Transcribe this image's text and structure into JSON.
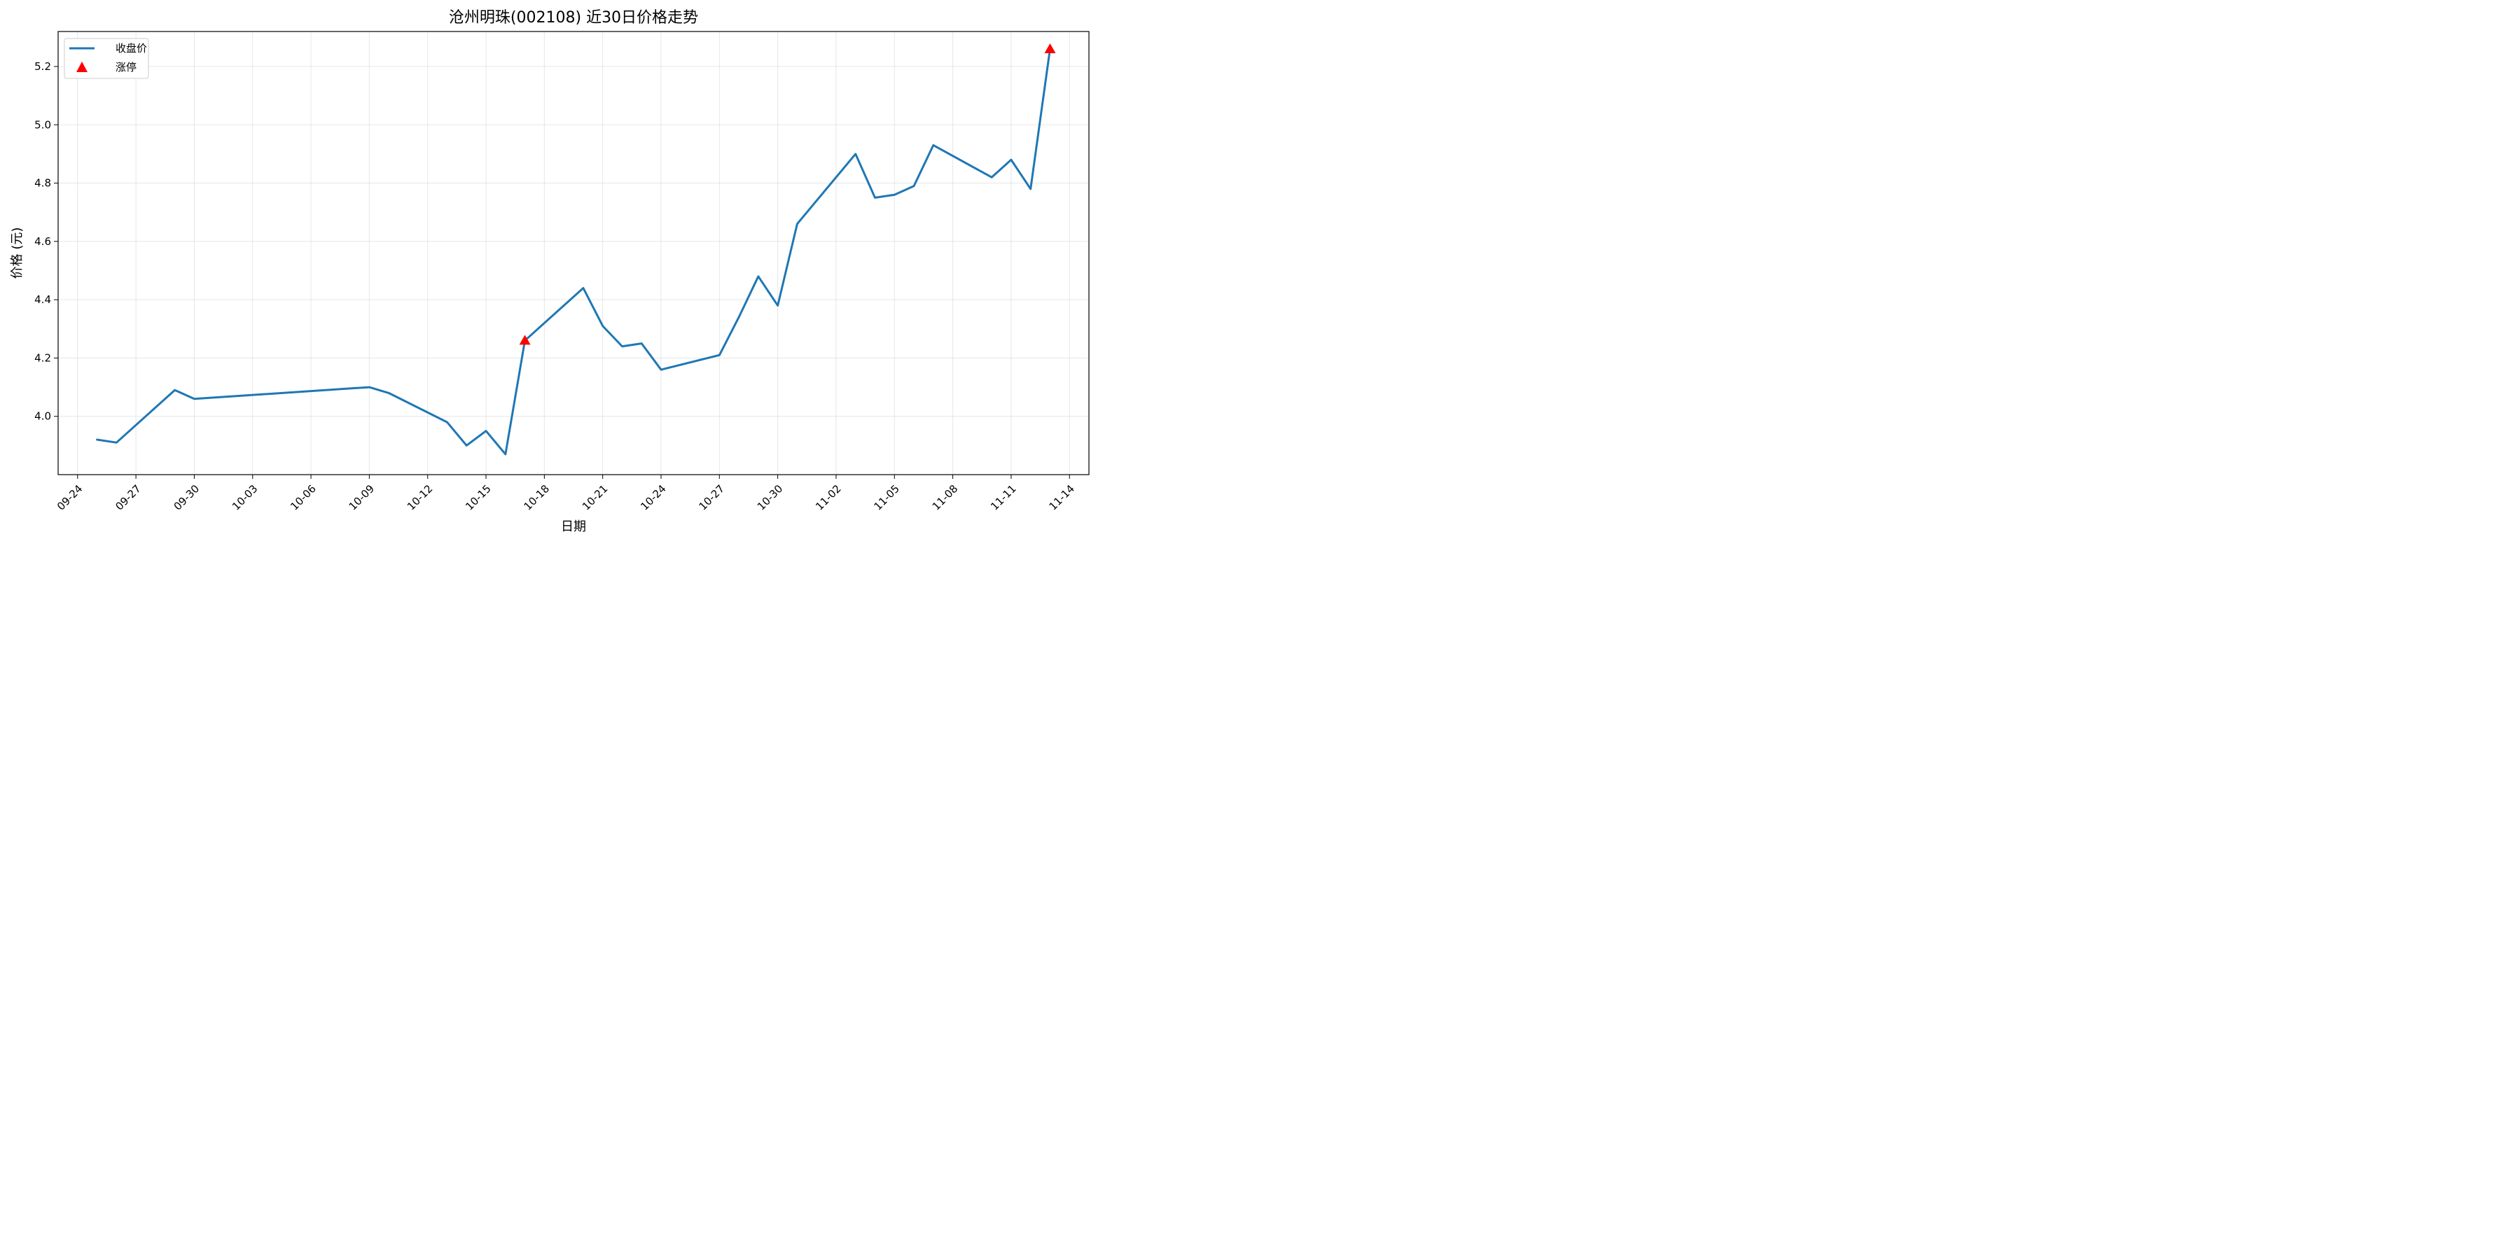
{
  "chart_data": {
    "type": "line",
    "title": "沧州明珠(002108) 近30日价格走势",
    "xlabel": "日期",
    "ylabel": "价格 (元)",
    "x_ticks": [
      "09-24",
      "09-27",
      "09-30",
      "10-03",
      "10-06",
      "10-09",
      "10-12",
      "10-15",
      "10-18",
      "10-21",
      "10-24",
      "10-27",
      "10-30",
      "11-02",
      "11-05",
      "11-08",
      "11-11",
      "11-14"
    ],
    "y_ticks": [
      "4.0",
      "4.2",
      "4.4",
      "4.6",
      "4.8",
      "5.0",
      "5.2"
    ],
    "ylim": [
      3.8,
      5.32
    ],
    "xlim": [
      "2024-09-23",
      "2024-11-15"
    ],
    "grid": true,
    "legend_position": "top-left",
    "series": [
      {
        "name": "收盘价",
        "kind": "line",
        "color": "#1f77b4",
        "x": [
          "2024-09-25",
          "2024-09-26",
          "2024-09-29",
          "2024-09-30",
          "2024-10-09",
          "2024-10-10",
          "2024-10-13",
          "2024-10-14",
          "2024-10-15",
          "2024-10-16",
          "2024-10-17",
          "2024-10-20",
          "2024-10-21",
          "2024-10-22",
          "2024-10-23",
          "2024-10-24",
          "2024-10-27",
          "2024-10-28",
          "2024-10-29",
          "2024-10-30",
          "2024-10-31",
          "2024-11-03",
          "2024-11-04",
          "2024-11-05",
          "2024-11-06",
          "2024-11-07",
          "2024-11-10",
          "2024-11-11",
          "2024-11-12",
          "2024-11-13"
        ],
        "values": [
          3.92,
          3.91,
          4.09,
          4.06,
          4.1,
          4.08,
          3.98,
          3.9,
          3.95,
          3.87,
          4.26,
          4.44,
          4.31,
          4.24,
          4.25,
          4.16,
          4.21,
          4.34,
          4.48,
          4.38,
          4.66,
          4.9,
          4.75,
          4.76,
          4.79,
          4.93,
          4.82,
          4.88,
          4.78,
          5.26
        ]
      },
      {
        "name": "涨停",
        "kind": "marker",
        "color": "#ff0000",
        "x": [
          "2024-10-17",
          "2024-11-13"
        ],
        "values": [
          4.26,
          5.26
        ]
      }
    ]
  }
}
